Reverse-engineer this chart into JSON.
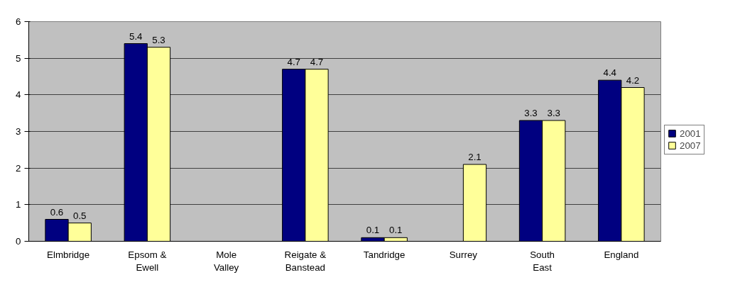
{
  "chart_data": {
    "type": "bar",
    "categories": [
      "Elmbridge",
      "Epsom & Ewell",
      "Mole Valley",
      "Reigate & Banstead",
      "Tandridge",
      "Surrey",
      "South East",
      "England"
    ],
    "series": [
      {
        "name": "2001",
        "color": "#000080",
        "values": [
          0.6,
          5.4,
          null,
          4.7,
          0.1,
          null,
          3.3,
          4.4
        ]
      },
      {
        "name": "2007",
        "color": "#ffff99",
        "values": [
          0.5,
          5.3,
          null,
          4.7,
          0.1,
          2.1,
          3.3,
          4.2
        ]
      }
    ],
    "ylim": [
      0,
      6
    ],
    "yticks": [
      0,
      1,
      2,
      3,
      4,
      5,
      6
    ],
    "grid": "y",
    "legend": "right",
    "data_labels": true
  }
}
